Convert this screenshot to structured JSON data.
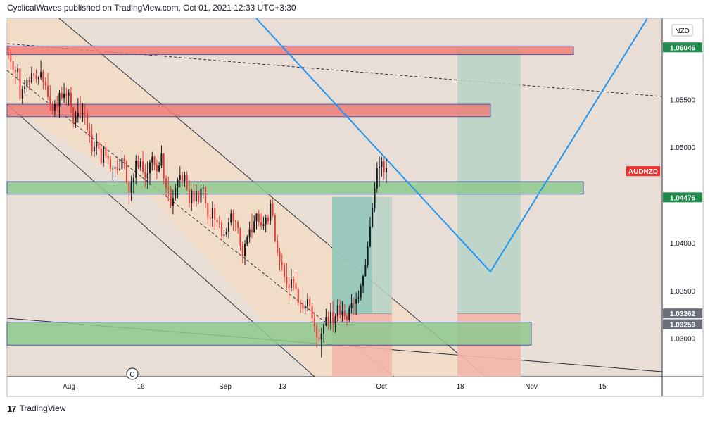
{
  "header": {
    "publisher_line": "CyclicalWaves published on TradingView.com, Oct 01, 2021 12:33 UTC+3:30"
  },
  "footer": {
    "logo_glyph": "17",
    "brand": "TradingView"
  },
  "colors": {
    "background": "#e9ded6",
    "channel_fill": "#f7ddbb",
    "red_zone": "#ef7f7a",
    "green_zone": "#8fca8e",
    "target_fill": "#b7d3c8",
    "stop_fill": "#f2b6a8",
    "entry_fill": "#7bbfb3",
    "blue_line": "#2196f3",
    "candle_up": "#131722",
    "candle_down": "#e53935",
    "price_tag_green": "#1e8a4c",
    "symbol_tag_red": "#ef2d2d"
  },
  "chart_data": {
    "type": "candlestick",
    "symbol": "AUDNZD",
    "currency": "NZD",
    "x_ticks": [
      "Aug",
      "16",
      "Sep",
      "13",
      "Oct",
      "18",
      "Nov",
      "15"
    ],
    "y_ticks": [
      "1.03000",
      "1.03500",
      "1.04000",
      "1.05000",
      "1.05500"
    ],
    "ylim": [
      1.026,
      1.0635
    ],
    "price_tags": [
      {
        "label": "1.06046",
        "value": 1.06046,
        "style": "green"
      },
      {
        "label": "1.04476",
        "value": 1.04476,
        "style": "green"
      },
      {
        "label": "1.03262",
        "value": 1.03262,
        "style": "gray"
      },
      {
        "label": "1.03259",
        "value": 1.03259,
        "style": "gray"
      }
    ],
    "symbol_tag": {
      "label": "AUDNZD",
      "value": 1.0475
    },
    "event_marker": "C",
    "zones": [
      {
        "kind": "resistance",
        "from": 1.0597,
        "to": 1.0606
      },
      {
        "kind": "resistance",
        "from": 1.0532,
        "to": 1.0545
      },
      {
        "kind": "support",
        "from": 1.0451,
        "to": 1.0464
      },
      {
        "kind": "support",
        "from": 1.0293,
        "to": 1.0317
      }
    ],
    "positions": [
      {
        "entry": 1.0326,
        "target": 1.0448,
        "stop": 1.026
      },
      {
        "entry": 1.0326,
        "target": 1.0604,
        "stop": 1.026
      }
    ],
    "candles_ohlc": [
      [
        1.05988,
        1.06057,
        1.05921,
        1.05986
      ],
      [
        1.05986,
        1.06027,
        1.05811,
        1.05898
      ],
      [
        1.05898,
        1.05904,
        1.05732,
        1.05813
      ],
      [
        1.05813,
        1.05846,
        1.05658,
        1.05788
      ],
      [
        1.05788,
        1.0587,
        1.05705,
        1.05826
      ],
      [
        1.05826,
        1.05826,
        1.05491,
        1.05512
      ],
      [
        1.05512,
        1.05642,
        1.05454,
        1.05608
      ],
      [
        1.05608,
        1.05708,
        1.05565,
        1.05637
      ],
      [
        1.05637,
        1.05728,
        1.05577,
        1.05707
      ],
      [
        1.05707,
        1.05739,
        1.05599,
        1.05681
      ],
      [
        1.05681,
        1.05845,
        1.05664,
        1.05774
      ],
      [
        1.05774,
        1.05776,
        1.05693,
        1.05747
      ],
      [
        1.05747,
        1.05818,
        1.05673,
        1.05715
      ],
      [
        1.05715,
        1.05746,
        1.05649,
        1.0573
      ],
      [
        1.0573,
        1.05911,
        1.05706,
        1.05789
      ],
      [
        1.05789,
        1.05813,
        1.05604,
        1.05683
      ],
      [
        1.05683,
        1.05732,
        1.05596,
        1.05644
      ],
      [
        1.05644,
        1.05782,
        1.05496,
        1.05528
      ],
      [
        1.05528,
        1.05651,
        1.05382,
        1.05442
      ],
      [
        1.05442,
        1.05476,
        1.05345,
        1.05381
      ],
      [
        1.05381,
        1.05496,
        1.05322,
        1.05452
      ],
      [
        1.05452,
        1.05541,
        1.05403,
        1.05427
      ],
      [
        1.05427,
        1.05598,
        1.05306,
        1.05568
      ],
      [
        1.05568,
        1.05635,
        1.05492,
        1.05517
      ],
      [
        1.05517,
        1.05672,
        1.05465,
        1.05559
      ],
      [
        1.05559,
        1.05622,
        1.05436,
        1.05542
      ],
      [
        1.05542,
        1.05608,
        1.05435,
        1.05573
      ],
      [
        1.05573,
        1.0563,
        1.05356,
        1.05419
      ],
      [
        1.05419,
        1.05428,
        1.05206,
        1.05255
      ],
      [
        1.05255,
        1.05382,
        1.05202,
        1.05318
      ],
      [
        1.05318,
        1.05516,
        1.05255,
        1.05366
      ],
      [
        1.05366,
        1.05538,
        1.05299,
        1.05346
      ],
      [
        1.05346,
        1.05464,
        1.05264,
        1.05361
      ],
      [
        1.05361,
        1.05449,
        1.05237,
        1.05357
      ],
      [
        1.05357,
        1.05399,
        1.05145,
        1.05181
      ],
      [
        1.05181,
        1.05253,
        1.05047,
        1.05132
      ],
      [
        1.05132,
        1.05242,
        1.04912,
        1.04956
      ],
      [
        1.04956,
        1.05063,
        1.04899,
        1.05004
      ],
      [
        1.05004,
        1.05148,
        1.04919,
        1.05056
      ],
      [
        1.05056,
        1.05154,
        1.04951,
        1.04987
      ],
      [
        1.04987,
        1.05035,
        1.04818,
        1.04839
      ],
      [
        1.04839,
        1.05015,
        1.04796,
        1.04994
      ],
      [
        1.04994,
        1.05061,
        1.0488,
        1.04913
      ],
      [
        1.04913,
        1.04958,
        1.04825,
        1.04877
      ],
      [
        1.04877,
        1.0491,
        1.04743,
        1.04777
      ],
      [
        1.04777,
        1.04808,
        1.04649,
        1.04777
      ],
      [
        1.04777,
        1.04862,
        1.04683,
        1.04795
      ],
      [
        1.04795,
        1.04876,
        1.04719,
        1.0476
      ],
      [
        1.0476,
        1.04874,
        1.04751,
        1.04777
      ],
      [
        1.04777,
        1.0497,
        1.04766,
        1.04885
      ],
      [
        1.04885,
        1.04919,
        1.04768,
        1.04855
      ],
      [
        1.04855,
        1.0487,
        1.04615,
        1.0463
      ],
      [
        1.0463,
        1.04652,
        1.04405,
        1.04527
      ],
      [
        1.04527,
        1.04703,
        1.04439,
        1.04632
      ],
      [
        1.04632,
        1.04728,
        1.0452,
        1.0468
      ],
      [
        1.0468,
        1.04918,
        1.04614,
        1.04861
      ],
      [
        1.04861,
        1.04914,
        1.04771,
        1.04793
      ],
      [
        1.04793,
        1.04884,
        1.04753,
        1.04853
      ],
      [
        1.04853,
        1.04962,
        1.04719,
        1.04743
      ],
      [
        1.04743,
        1.04824,
        1.04577,
        1.04676
      ],
      [
        1.04676,
        1.04855,
        1.04563,
        1.04727
      ],
      [
        1.04727,
        1.0487,
        1.04604,
        1.04844
      ],
      [
        1.04844,
        1.04953,
        1.04756,
        1.04901
      ],
      [
        1.04901,
        1.04914,
        1.04761,
        1.04814
      ],
      [
        1.04814,
        1.04872,
        1.04669,
        1.04748
      ],
      [
        1.04748,
        1.04847,
        1.04735,
        1.04807
      ],
      [
        1.04807,
        1.05019,
        1.04781,
        1.04934
      ],
      [
        1.04934,
        1.0494,
        1.04612,
        1.04674
      ],
      [
        1.04674,
        1.04705,
        1.04483,
        1.04571
      ],
      [
        1.04571,
        1.04693,
        1.04435,
        1.04563
      ],
      [
        1.04563,
        1.04599,
        1.04359,
        1.04388
      ],
      [
        1.04388,
        1.04554,
        1.04298,
        1.0447
      ],
      [
        1.0447,
        1.04616,
        1.04443,
        1.04576
      ],
      [
        1.04576,
        1.04681,
        1.04468,
        1.04657
      ],
      [
        1.04657,
        1.04801,
        1.04582,
        1.04707
      ],
      [
        1.04707,
        1.04744,
        1.04599,
        1.04649
      ],
      [
        1.04649,
        1.04744,
        1.04585,
        1.04711
      ],
      [
        1.04711,
        1.0475,
        1.04536,
        1.04562
      ],
      [
        1.04562,
        1.04655,
        1.04366,
        1.0442
      ],
      [
        1.0442,
        1.04562,
        1.04335,
        1.0454
      ],
      [
        1.0454,
        1.04618,
        1.04378,
        1.04433
      ],
      [
        1.04433,
        1.04608,
        1.04379,
        1.04538
      ],
      [
        1.04538,
        1.04552,
        1.04408,
        1.04425
      ],
      [
        1.04425,
        1.04612,
        1.04409,
        1.04567
      ],
      [
        1.04567,
        1.04612,
        1.04468,
        1.04579
      ],
      [
        1.04579,
        1.04594,
        1.04362,
        1.04416
      ],
      [
        1.04416,
        1.04424,
        1.04199,
        1.04269
      ],
      [
        1.04269,
        1.04338,
        1.04165,
        1.04255
      ],
      [
        1.04255,
        1.04435,
        1.04169,
        1.04361
      ],
      [
        1.04361,
        1.04411,
        1.04136,
        1.04246
      ],
      [
        1.04246,
        1.04267,
        1.04136,
        1.04214
      ],
      [
        1.04214,
        1.04284,
        1.04154,
        1.04211
      ],
      [
        1.04211,
        1.04241,
        1.04024,
        1.04071
      ],
      [
        1.04071,
        1.04135,
        1.03974,
        1.04088
      ],
      [
        1.04088,
        1.04154,
        1.04068,
        1.04117
      ],
      [
        1.04117,
        1.04264,
        1.04048,
        1.04213
      ],
      [
        1.04213,
        1.04351,
        1.04179,
        1.04308
      ],
      [
        1.04308,
        1.04349,
        1.04127,
        1.04229
      ],
      [
        1.04229,
        1.04244,
        1.0412,
        1.04219
      ],
      [
        1.04219,
        1.04237,
        1.04095,
        1.04154
      ],
      [
        1.04154,
        1.04163,
        1.03921,
        1.03969
      ],
      [
        1.03969,
        1.04011,
        1.03786,
        1.03863
      ],
      [
        1.03863,
        1.04029,
        1.03772,
        1.03988
      ],
      [
        1.03988,
        1.04081,
        1.03965,
        1.04061
      ],
      [
        1.04061,
        1.04222,
        1.04001,
        1.04142
      ],
      [
        1.04142,
        1.04309,
        1.04049,
        1.04111
      ],
      [
        1.04111,
        1.04287,
        1.04104,
        1.04225
      ],
      [
        1.04225,
        1.04311,
        1.04141,
        1.04305
      ],
      [
        1.04305,
        1.04348,
        1.04176,
        1.04214
      ],
      [
        1.04214,
        1.04313,
        1.04139,
        1.04178
      ],
      [
        1.04178,
        1.04276,
        1.04133,
        1.04196
      ],
      [
        1.04196,
        1.04294,
        1.04111,
        1.04265
      ],
      [
        1.04265,
        1.04296,
        1.0419,
        1.04228
      ],
      [
        1.04228,
        1.04451,
        1.04187,
        1.04409
      ],
      [
        1.04409,
        1.04476,
        1.04268,
        1.04289
      ],
      [
        1.04289,
        1.04311,
        1.04003,
        1.04019
      ],
      [
        1.04019,
        1.04086,
        1.03863,
        1.03907
      ],
      [
        1.03907,
        1.03951,
        1.03704,
        1.03798
      ],
      [
        1.03798,
        1.03885,
        1.03707,
        1.03769
      ],
      [
        1.03769,
        1.03791,
        1.03581,
        1.03645
      ],
      [
        1.03645,
        1.03787,
        1.03505,
        1.0357
      ],
      [
        1.0357,
        1.03643,
        1.03393,
        1.03528
      ],
      [
        1.03528,
        1.03728,
        1.03492,
        1.03616
      ],
      [
        1.03616,
        1.03647,
        1.03502,
        1.0358
      ],
      [
        1.0358,
        1.03698,
        1.03452,
        1.03517
      ],
      [
        1.03517,
        1.03531,
        1.03344,
        1.03375
      ],
      [
        1.03375,
        1.03405,
        1.03268,
        1.03365
      ],
      [
        1.03365,
        1.03406,
        1.03259,
        1.03312
      ],
      [
        1.03312,
        1.03395,
        1.03249,
        1.03339
      ],
      [
        1.03339,
        1.03474,
        1.03285,
        1.03414
      ],
      [
        1.03414,
        1.03441,
        1.03285,
        1.03339
      ],
      [
        1.03339,
        1.03369,
        1.03171,
        1.03209
      ],
      [
        1.03209,
        1.03262,
        1.03067,
        1.0313
      ],
      [
        1.0313,
        1.03158,
        1.02903,
        1.03015
      ],
      [
        1.03015,
        1.03101,
        1.02956,
        1.02987
      ],
      [
        1.02987,
        1.03111,
        1.02802,
        1.03049
      ],
      [
        1.03049,
        1.03157,
        1.02954,
        1.03138
      ],
      [
        1.03138,
        1.0331,
        1.03127,
        1.03226
      ],
      [
        1.03226,
        1.0328,
        1.03092,
        1.03155
      ],
      [
        1.03155,
        1.03371,
        1.03083,
        1.03276
      ],
      [
        1.03276,
        1.03387,
        1.03066,
        1.03156
      ],
      [
        1.03156,
        1.03257,
        1.03058,
        1.03233
      ],
      [
        1.03233,
        1.03412,
        1.03177,
        1.03348
      ],
      [
        1.03348,
        1.03407,
        1.03211,
        1.03247
      ],
      [
        1.03247,
        1.03392,
        1.03172,
        1.03285
      ],
      [
        1.03285,
        1.0336,
        1.03196,
        1.03233
      ],
      [
        1.03233,
        1.03262,
        1.03133,
        1.03194
      ],
      [
        1.03194,
        1.03346,
        1.03166,
        1.03317
      ],
      [
        1.03317,
        1.03465,
        1.0326,
        1.03369
      ],
      [
        1.03369,
        1.03428,
        1.03242,
        1.03363
      ],
      [
        1.03363,
        1.03482,
        1.03241,
        1.03418
      ],
      [
        1.03418,
        1.03502,
        1.03368,
        1.03428
      ],
      [
        1.03428,
        1.03575,
        1.03396,
        1.03551
      ],
      [
        1.03551,
        1.0367,
        1.03478,
        1.03652
      ],
      [
        1.03652,
        1.0383,
        1.03647,
        1.03769
      ],
      [
        1.03769,
        1.04017,
        1.03739,
        1.0396
      ],
      [
        1.0396,
        1.04272,
        1.03952,
        1.04171
      ],
      [
        1.04171,
        1.04415,
        1.04157,
        1.04365
      ],
      [
        1.04365,
        1.04633,
        1.04322,
        1.0457
      ],
      [
        1.0457,
        1.04848,
        1.04525,
        1.04781
      ],
      [
        1.04781,
        1.04904,
        1.04591,
        1.04798
      ],
      [
        1.04798,
        1.04901,
        1.04693,
        1.04852
      ],
      [
        1.04852,
        1.04886,
        1.04666,
        1.04736
      ],
      [
        1.04736,
        1.04879,
        1.04624,
        1.04781
      ]
    ]
  }
}
